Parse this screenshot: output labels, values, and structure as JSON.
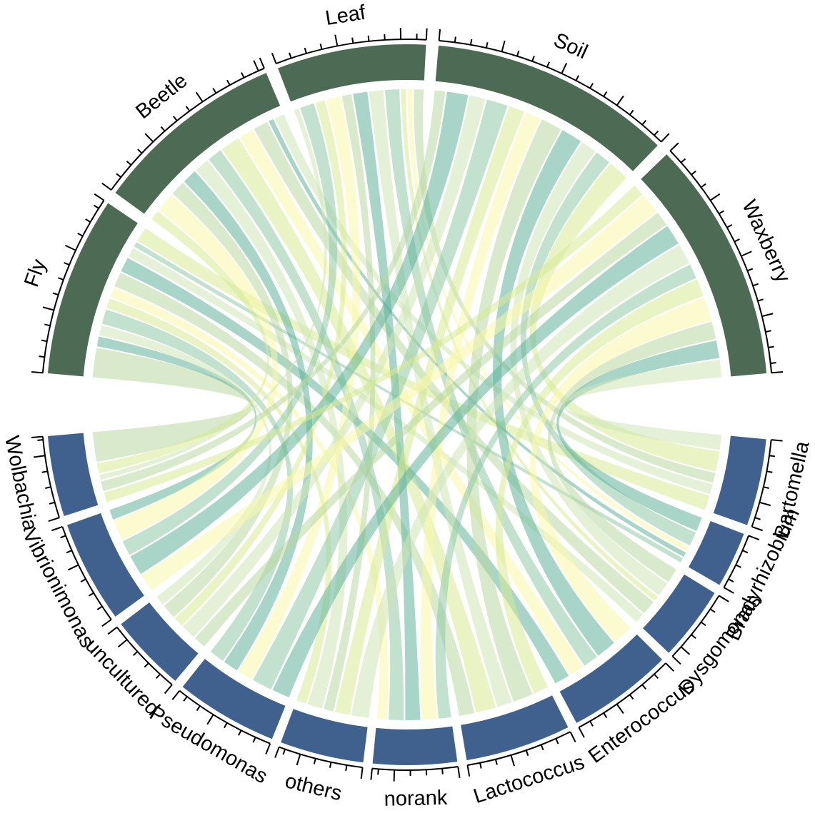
{
  "figure": {
    "description": "Circos-style chord diagram linking sample types (green arcs, top) to bacterial genera (blue arcs, bottom)",
    "background": "#ffffff",
    "legend": "none",
    "title": ""
  },
  "chart_data": {
    "type": "chord",
    "groups": {
      "samples": {
        "position": "top half",
        "color": "#4d6a54",
        "categories": [
          "Fly",
          "Beetle",
          "Leaf",
          "Soil",
          "Waxberry"
        ],
        "arc_spans_deg": [
          29,
          31,
          24,
          39,
          39
        ]
      },
      "taxa": {
        "position": "bottom half",
        "color": "#40618e",
        "categories": [
          "Wolbachia",
          "Vibrionimonas",
          "uncultured",
          "Pseudomonas",
          "others",
          "norank",
          "Lactococcus",
          "Enterococcus",
          "Dysgomonas",
          "Bradyrhizobium",
          "Bartomella"
        ],
        "arc_spans_deg": [
          13,
          16.5,
          12.5,
          16.5,
          13.5,
          13.5,
          17,
          17,
          12,
          9,
          14
        ]
      }
    },
    "matrix": {
      "rows": "samples",
      "cols": "taxa",
      "units": "relative abundance (arbitrary units estimated from arc widths)",
      "values": [
        [
          6,
          2,
          2,
          3,
          2,
          2,
          3,
          3,
          2,
          1,
          3
        ],
        [
          2,
          4,
          3,
          3,
          3,
          3,
          4,
          3,
          3,
          1,
          2
        ],
        [
          1,
          3,
          2,
          3,
          2,
          3,
          3,
          3,
          1,
          1,
          2
        ],
        [
          2,
          4,
          3,
          4,
          3,
          3,
          4,
          4,
          3,
          3,
          4
        ],
        [
          2,
          3.5,
          2.5,
          3.5,
          3.5,
          2.5,
          3,
          4,
          3,
          3,
          3
        ]
      ]
    },
    "ribbon_palette": [
      "#61b29b",
      "#b8d7a2",
      "#f8f8a8",
      "#d7e994",
      "#8fc9a5",
      "#cfe6b6"
    ],
    "ribbon_opacity": 0.55,
    "axes": {
      "style": "outer tick arcs with end brackets",
      "minor_tick_step": 2.5,
      "major_tick_step": 10,
      "tick_labels": "none"
    }
  }
}
